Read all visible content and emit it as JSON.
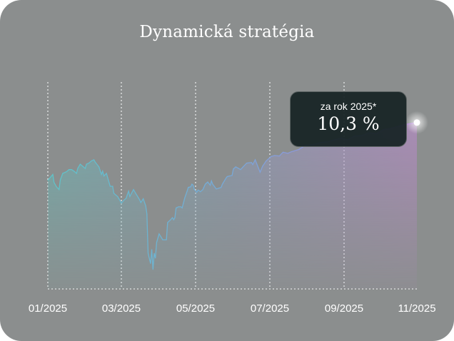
{
  "title": "Dynamická stratégia",
  "tooltip": {
    "label": "za rok 2025*",
    "value": "10,3 %"
  },
  "colors": {
    "background": "#8b8e8e",
    "line_start": "#5fc3c8",
    "line_end": "#b07ad8",
    "tooltip_bg": "#162224"
  },
  "chart_data": {
    "type": "area",
    "title": "Dynamická stratégia",
    "xlabel": "",
    "ylabel": "",
    "x_ticks": [
      {
        "date": "2025-01-01",
        "label": "01/2025"
      },
      {
        "date": "2025-03-01",
        "label": "03/2025"
      },
      {
        "date": "2025-05-01",
        "label": "05/2025"
      },
      {
        "date": "2025-07-01",
        "label": "07/2025"
      },
      {
        "date": "2025-09-01",
        "label": "09/2025"
      },
      {
        "date": "2025-11-01",
        "label": "11/2025"
      }
    ],
    "xlim": [
      "2025-01-01",
      "2025-11-01"
    ],
    "ylim": [
      -20.5,
      17.8
    ],
    "y_unit": "%",
    "grid": "vertical dotted",
    "highlight": {
      "date": "2025-11-01",
      "value": 10.3
    },
    "series": [
      {
        "x": [
          "2025-01-01",
          "2025-01-05",
          "2025-01-06",
          "2025-01-08",
          "2025-01-10",
          "2025-01-11",
          "2025-01-13",
          "2025-01-16",
          "2025-01-18",
          "2025-01-20",
          "2025-01-22",
          "2025-01-24",
          "2025-01-25",
          "2025-01-27",
          "2025-01-29",
          "2025-01-31",
          "2025-02-01",
          "2025-02-03",
          "2025-02-05",
          "2025-02-07",
          "2025-02-08",
          "2025-02-11",
          "2025-02-13",
          "2025-02-14",
          "2025-02-15",
          "2025-02-17",
          "2025-02-20",
          "2025-02-22",
          "2025-02-23",
          "2025-02-26",
          "2025-02-28",
          "2025-03-01",
          "2025-03-03",
          "2025-03-05",
          "2025-03-06",
          "2025-03-07",
          "2025-03-08",
          "2025-03-11",
          "2025-03-13",
          "2025-03-16",
          "2025-03-17",
          "2025-03-19",
          "2025-03-21",
          "2025-03-22",
          "2025-03-23",
          "2025-03-25",
          "2025-03-26",
          "2025-03-27",
          "2025-03-28",
          "2025-03-29",
          "2025-03-30",
          "2025-04-01",
          "2025-04-04",
          "2025-04-07",
          "2025-04-08",
          "2025-04-10",
          "2025-04-12",
          "2025-04-13",
          "2025-04-14",
          "2025-04-15",
          "2025-04-17",
          "2025-04-19",
          "2025-04-20",
          "2025-04-22",
          "2025-04-24",
          "2025-04-25",
          "2025-04-27",
          "2025-04-28",
          "2025-04-29",
          "2025-04-30",
          "2025-05-02",
          "2025-05-03",
          "2025-05-05",
          "2025-05-07",
          "2025-05-09",
          "2025-05-11",
          "2025-05-13",
          "2025-05-14",
          "2025-05-15",
          "2025-05-18",
          "2025-05-22",
          "2025-05-23",
          "2025-05-26",
          "2025-05-27",
          "2025-05-31",
          "2025-06-01",
          "2025-06-03",
          "2025-06-07",
          "2025-06-09",
          "2025-06-12",
          "2025-06-16",
          "2025-06-17",
          "2025-06-19",
          "2025-06-23",
          "2025-06-25",
          "2025-06-28",
          "2025-07-02",
          "2025-07-05",
          "2025-07-09",
          "2025-07-12",
          "2025-07-16",
          "2025-07-19",
          "2025-07-25",
          "2025-07-31",
          "2025-08-06",
          "2025-08-12",
          "2025-08-18",
          "2025-08-24",
          "2025-08-30",
          "2025-09-04",
          "2025-09-10",
          "2025-09-16",
          "2025-09-22",
          "2025-09-28",
          "2025-10-04",
          "2025-10-10",
          "2025-10-15",
          "2025-10-21",
          "2025-11-01"
        ],
        "values": [
          -0.4,
          0.7,
          -0.8,
          -1.6,
          -2.1,
          -0.3,
          0.9,
          1.2,
          1.6,
          1.6,
          1.3,
          0.9,
          1.8,
          2.6,
          2.2,
          1.8,
          2.6,
          2.8,
          3.2,
          3.4,
          3.0,
          2.1,
          0.7,
          1.3,
          0.4,
          0.9,
          -1.5,
          -1.5,
          -2.8,
          -3.4,
          -4.2,
          -4.6,
          -4.1,
          -3.7,
          -3.0,
          -2.4,
          -3.4,
          -2.1,
          -2.9,
          -4.0,
          -4.5,
          -3.8,
          -5.1,
          -6.6,
          -13.9,
          -15.8,
          -13.2,
          -16.9,
          -13.9,
          -14.8,
          -11.9,
          -10.3,
          -11.4,
          -11.4,
          -8.2,
          -7.8,
          -7.3,
          -7.7,
          -7.3,
          -5.5,
          -5.3,
          -5.3,
          -5.5,
          -3.7,
          -2.4,
          -1.7,
          -1.6,
          -1.1,
          -1.3,
          -2.1,
          -2.6,
          -2.2,
          -2.5,
          -2.1,
          -1.1,
          -0.7,
          -1.3,
          -0.5,
          -1.1,
          -2.0,
          -1.7,
          -1.1,
          0.0,
          0.3,
          0.5,
          1.7,
          2.1,
          1.6,
          2.1,
          2.8,
          2.9,
          2.5,
          3.4,
          1.1,
          2.2,
          3.2,
          4.0,
          4.2,
          4.1,
          4.8,
          4.6,
          4.9,
          5.3,
          6.1,
          6.2,
          6.6,
          6.7,
          7.1,
          7.4,
          7.1,
          7.8,
          7.9,
          8.4,
          8.2,
          9.0,
          9.2,
          9.5,
          9.9,
          10.3
        ]
      }
    ]
  }
}
